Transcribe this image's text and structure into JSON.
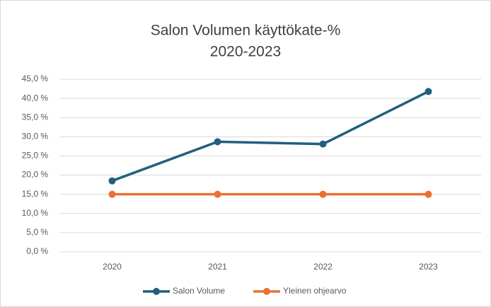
{
  "chart_data": {
    "type": "line",
    "title": "Salon Volumen käyttökate-%",
    "subtitle": "2020-2023",
    "categories": [
      "2020",
      "2021",
      "2022",
      "2023"
    ],
    "series": [
      {
        "name": "Salon Volume",
        "color": "#215f7e",
        "values": [
          18.5,
          28.7,
          28.1,
          41.8
        ]
      },
      {
        "name": "Yleinen ohjearvo",
        "color": "#e97132",
        "values": [
          15,
          15,
          15,
          15
        ]
      }
    ],
    "ylim": [
      0,
      45
    ],
    "yticks": [
      {
        "value": 0,
        "label": "0,0 %"
      },
      {
        "value": 5,
        "label": "5,0 %"
      },
      {
        "value": 10,
        "label": "10,0 %"
      },
      {
        "value": 15,
        "label": "15,0 %"
      },
      {
        "value": 20,
        "label": "20,0 %"
      },
      {
        "value": 25,
        "label": "25,0 %"
      },
      {
        "value": 30,
        "label": "30,0 %"
      },
      {
        "value": 35,
        "label": "35,0 %"
      },
      {
        "value": 40,
        "label": "40,0 %"
      },
      {
        "value": 45,
        "label": "45,0 %"
      }
    ],
    "grid": true,
    "legend": "bottom"
  }
}
